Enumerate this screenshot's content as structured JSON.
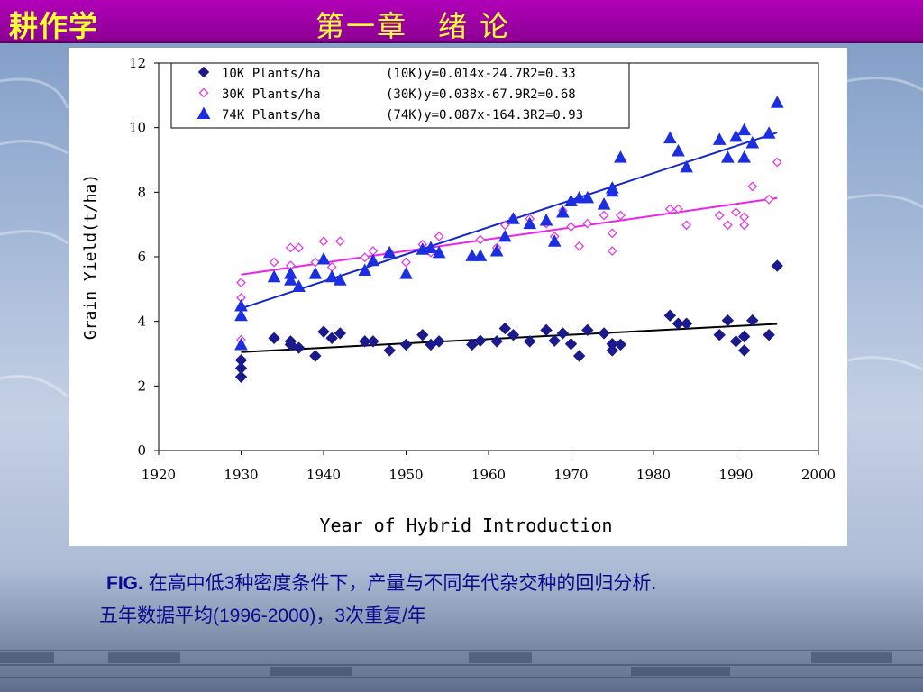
{
  "header": {
    "course_title": "耕作学",
    "chapter_title": "第一章　绪 论"
  },
  "caption": {
    "fig_label": "FIG.",
    "line1": "在高中低3种密度条件下，产量与不同年代杂交种的回归分析.",
    "line2": "五年数据平均(1996-2000)，3次重复/年"
  },
  "colors": {
    "s10k": "#1a1a8c",
    "s30k": "#e13ce1",
    "s74k": "#1c2fe0",
    "fit10k": "#000000",
    "fit30k": "#ee22ee",
    "fit74k": "#1428c8",
    "title_bar": "#a000a8",
    "title_text": "#ffff33"
  },
  "chart_data": {
    "type": "scatter",
    "xlabel": "Year of Hybrid Introduction",
    "ylabel": "Grain Yield(t/ha)",
    "xlim": [
      1920,
      2000
    ],
    "ylim": [
      0,
      12
    ],
    "xticks": [
      "1920",
      "1930",
      "1940",
      "1950",
      "1960",
      "1970",
      "1980",
      "1990",
      "2000"
    ],
    "yticks": [
      "0",
      "2",
      "4",
      "6",
      "8",
      "10",
      "12"
    ],
    "grid": false,
    "legend_position": "top-left",
    "series": [
      {
        "name": "10K Plants/ha",
        "equation": "(10K)y=0.014x-24.7R2=0.33",
        "marker": "diamond-filled",
        "fit": [
          [
            1930,
            3.05
          ],
          [
            1995,
            3.92
          ]
        ],
        "points": [
          [
            1930,
            2.8
          ],
          [
            1930,
            2.55
          ],
          [
            1930,
            2.28
          ],
          [
            1934,
            3.48
          ],
          [
            1936,
            3.38
          ],
          [
            1936,
            3.28
          ],
          [
            1937,
            3.18
          ],
          [
            1939,
            2.93
          ],
          [
            1940,
            3.68
          ],
          [
            1941,
            3.48
          ],
          [
            1942,
            3.63
          ],
          [
            1945,
            3.38
          ],
          [
            1946,
            3.38
          ],
          [
            1948,
            3.1
          ],
          [
            1950,
            3.28
          ],
          [
            1952,
            3.58
          ],
          [
            1953,
            3.28
          ],
          [
            1954,
            3.38
          ],
          [
            1958,
            3.28
          ],
          [
            1959,
            3.4
          ],
          [
            1961,
            3.38
          ],
          [
            1962,
            3.78
          ],
          [
            1963,
            3.58
          ],
          [
            1965,
            3.38
          ],
          [
            1967,
            3.73
          ],
          [
            1968,
            3.4
          ],
          [
            1969,
            3.63
          ],
          [
            1970,
            3.3
          ],
          [
            1971,
            2.93
          ],
          [
            1972,
            3.73
          ],
          [
            1974,
            3.63
          ],
          [
            1975,
            3.3
          ],
          [
            1975,
            3.1
          ],
          [
            1976,
            3.28
          ],
          [
            1982,
            4.18
          ],
          [
            1983,
            3.93
          ],
          [
            1984,
            3.93
          ],
          [
            1988,
            3.58
          ],
          [
            1989,
            4.03
          ],
          [
            1990,
            3.38
          ],
          [
            1991,
            3.53
          ],
          [
            1991,
            3.1
          ],
          [
            1992,
            4.03
          ],
          [
            1994,
            3.58
          ],
          [
            1995,
            5.72
          ]
        ]
      },
      {
        "name": "30K Plants/ha",
        "equation": "(30K)y=0.038x-67.9R2=0.68",
        "marker": "diamond-open",
        "fit": [
          [
            1930,
            5.45
          ],
          [
            1995,
            7.82
          ]
        ],
        "points": [
          [
            1930,
            5.2
          ],
          [
            1930,
            4.73
          ],
          [
            1930,
            3.43
          ],
          [
            1934,
            5.83
          ],
          [
            1936,
            6.28
          ],
          [
            1936,
            5.73
          ],
          [
            1937,
            6.28
          ],
          [
            1939,
            5.83
          ],
          [
            1940,
            6.48
          ],
          [
            1941,
            5.68
          ],
          [
            1942,
            6.48
          ],
          [
            1945,
            5.98
          ],
          [
            1946,
            6.18
          ],
          [
            1948,
            6.13
          ],
          [
            1950,
            5.83
          ],
          [
            1952,
            6.38
          ],
          [
            1953,
            6.13
          ],
          [
            1954,
            6.63
          ],
          [
            1958,
            6.0
          ],
          [
            1959,
            6.53
          ],
          [
            1961,
            6.28
          ],
          [
            1962,
            6.98
          ],
          [
            1963,
            7.18
          ],
          [
            1965,
            7.18
          ],
          [
            1967,
            7.03
          ],
          [
            1968,
            6.63
          ],
          [
            1969,
            7.43
          ],
          [
            1970,
            6.93
          ],
          [
            1971,
            6.33
          ],
          [
            1972,
            7.03
          ],
          [
            1974,
            7.28
          ],
          [
            1975,
            6.73
          ],
          [
            1975,
            6.18
          ],
          [
            1976,
            7.28
          ],
          [
            1982,
            7.48
          ],
          [
            1983,
            7.48
          ],
          [
            1984,
            6.98
          ],
          [
            1988,
            7.28
          ],
          [
            1989,
            6.98
          ],
          [
            1990,
            7.38
          ],
          [
            1991,
            7.23
          ],
          [
            1991,
            6.98
          ],
          [
            1992,
            8.18
          ],
          [
            1994,
            7.78
          ],
          [
            1995,
            8.93
          ]
        ]
      },
      {
        "name": "74K Plants/ha",
        "equation": "(74K)y=0.087x-164.3R2=0.93",
        "marker": "triangle-filled",
        "fit": [
          [
            1930,
            4.4
          ],
          [
            1995,
            9.85
          ]
        ],
        "points": [
          [
            1930,
            4.48
          ],
          [
            1930,
            4.18
          ],
          [
            1930,
            3.28
          ],
          [
            1934,
            5.38
          ],
          [
            1936,
            5.48
          ],
          [
            1936,
            5.28
          ],
          [
            1937,
            5.08
          ],
          [
            1939,
            5.48
          ],
          [
            1940,
            5.93
          ],
          [
            1941,
            5.38
          ],
          [
            1942,
            5.28
          ],
          [
            1945,
            5.58
          ],
          [
            1946,
            5.88
          ],
          [
            1948,
            6.13
          ],
          [
            1950,
            5.48
          ],
          [
            1952,
            6.23
          ],
          [
            1953,
            6.28
          ],
          [
            1954,
            6.13
          ],
          [
            1958,
            6.03
          ],
          [
            1959,
            6.03
          ],
          [
            1961,
            6.18
          ],
          [
            1962,
            6.63
          ],
          [
            1963,
            7.18
          ],
          [
            1965,
            7.03
          ],
          [
            1967,
            7.13
          ],
          [
            1968,
            6.48
          ],
          [
            1969,
            7.38
          ],
          [
            1970,
            7.73
          ],
          [
            1971,
            7.83
          ],
          [
            1972,
            7.83
          ],
          [
            1974,
            7.63
          ],
          [
            1975,
            8.03
          ],
          [
            1975,
            8.13
          ],
          [
            1976,
            9.08
          ],
          [
            1982,
            9.68
          ],
          [
            1983,
            9.28
          ],
          [
            1984,
            8.78
          ],
          [
            1988,
            9.63
          ],
          [
            1989,
            9.08
          ],
          [
            1990,
            9.73
          ],
          [
            1991,
            9.93
          ],
          [
            1991,
            9.08
          ],
          [
            1992,
            9.53
          ],
          [
            1994,
            9.83
          ],
          [
            1995,
            10.78
          ]
        ]
      }
    ]
  }
}
